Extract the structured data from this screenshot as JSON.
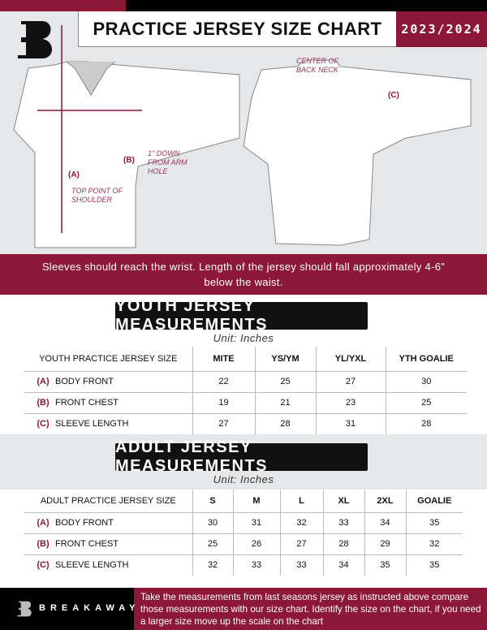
{
  "header": {
    "title": "PRACTICE JERSEY SIZE CHART",
    "season": "2023/2024",
    "brand_logo_letter": "B"
  },
  "diagram": {
    "center_back_neck": "CENTER OF BACK NECK",
    "label_a": "(A)",
    "label_b": "(B)",
    "label_c": "(C)",
    "one_inch_down": "1\" DOWN FROM ARM HOLE",
    "top_point_shoulder": "TOP POINT OF SHOULDER"
  },
  "instruction": "Sleeves should reach the wrist. Length of the jersey should fall approximately 4-6\" below the waist.",
  "youth": {
    "title": "YOUTH JERSEY MEASUREMENTS",
    "unit": "Unit: Inches",
    "header": [
      "YOUTH PRACTICE JERSEY SIZE",
      "MITE",
      "YS/YM",
      "YL/YXL",
      "YTH GOALIE"
    ],
    "rows": [
      {
        "letter": "(A)",
        "label": "BODY FRONT",
        "values": [
          "22",
          "25",
          "27",
          "30"
        ]
      },
      {
        "letter": "(B)",
        "label": "FRONT CHEST",
        "values": [
          "19",
          "21",
          "23",
          "25"
        ]
      },
      {
        "letter": "(C)",
        "label": "SLEEVE LENGTH",
        "values": [
          "27",
          "28",
          "31",
          "28"
        ]
      }
    ]
  },
  "adult": {
    "title": "ADULT JERSEY MEASUREMENTS",
    "unit": "Unit: Inches",
    "header": [
      "ADULT PRACTICE JERSEY SIZE",
      "S",
      "M",
      "L",
      "XL",
      "2XL",
      "GOALIE"
    ],
    "rows": [
      {
        "letter": "(A)",
        "label": "BODY FRONT",
        "values": [
          "30",
          "31",
          "32",
          "33",
          "34",
          "35"
        ]
      },
      {
        "letter": "(B)",
        "label": "FRONT CHEST",
        "values": [
          "25",
          "26",
          "27",
          "28",
          "29",
          "32"
        ]
      },
      {
        "letter": "(C)",
        "label": "SLEEVE LENGTH",
        "values": [
          "32",
          "33",
          "33",
          "34",
          "35",
          "35"
        ]
      }
    ]
  },
  "footer": {
    "brand": "BREAKAWAY",
    "text": "Take the measurements from last seasons jersey as instructed above compare those measurements  with our size chart. Identify the size on the chart, if you need a larger size move up the scale on the chart"
  },
  "colors": {
    "maroon": "#8c1737",
    "black": "#000000",
    "gray": "#e6e7e8"
  }
}
